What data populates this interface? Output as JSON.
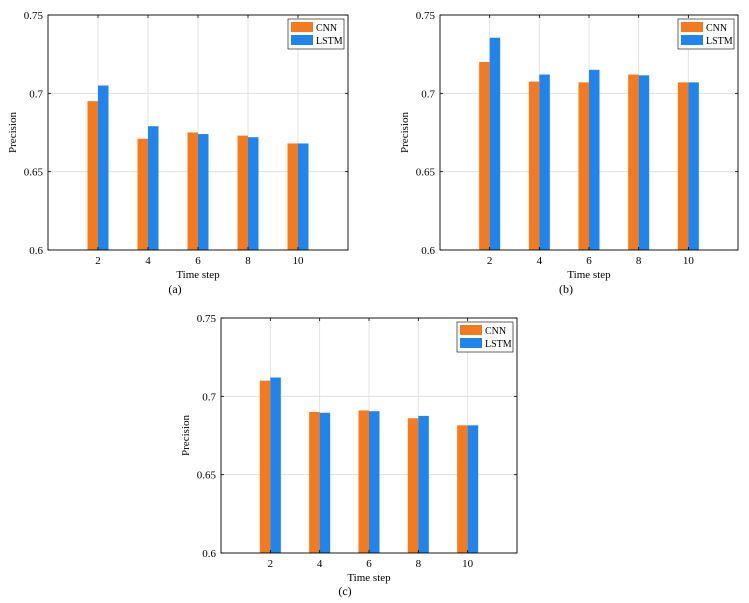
{
  "figure": {
    "colors": {
      "cnn": "#F47A20",
      "lstm": "#1F84EC",
      "grid": "#dcdcdc",
      "axis": "#000000"
    }
  },
  "chart_data": [
    {
      "type": "bar",
      "panel_label": "(a)",
      "xlabel": "Time step",
      "ylabel": "Precision",
      "categories": [
        "2",
        "4",
        "6",
        "8",
        "10"
      ],
      "x": [
        2,
        4,
        6,
        8,
        10
      ],
      "xlim": [
        0,
        12
      ],
      "ylim": [
        0.6,
        0.75
      ],
      "yticks": [
        "0.6",
        "0.65",
        "0.7",
        "0.75"
      ],
      "ytick_values": [
        0.6,
        0.65,
        0.7,
        0.75
      ],
      "grid": true,
      "legend": "top-right",
      "series": [
        {
          "name": "CNN",
          "values": [
            0.695,
            0.671,
            0.675,
            0.673,
            0.668
          ]
        },
        {
          "name": "LSTM",
          "values": [
            0.705,
            0.679,
            0.674,
            0.672,
            0.668
          ]
        }
      ]
    },
    {
      "type": "bar",
      "panel_label": "(b)",
      "xlabel": "Time step",
      "ylabel": "Precision",
      "categories": [
        "2",
        "4",
        "6",
        "8",
        "10"
      ],
      "x": [
        2,
        4,
        6,
        8,
        10
      ],
      "xlim": [
        0,
        12
      ],
      "ylim": [
        0.6,
        0.75
      ],
      "yticks": [
        "0.6",
        "0.65",
        "0.7",
        "0.75"
      ],
      "ytick_values": [
        0.6,
        0.65,
        0.7,
        0.75
      ],
      "grid": true,
      "legend": "top-right",
      "series": [
        {
          "name": "CNN",
          "values": [
            0.72,
            0.7075,
            0.707,
            0.712,
            0.707
          ]
        },
        {
          "name": "LSTM",
          "values": [
            0.7355,
            0.712,
            0.715,
            0.7115,
            0.707
          ]
        }
      ]
    },
    {
      "type": "bar",
      "panel_label": "(c)",
      "xlabel": "Time step",
      "ylabel": "Precision",
      "categories": [
        "2",
        "4",
        "6",
        "8",
        "10"
      ],
      "x": [
        2,
        4,
        6,
        8,
        10
      ],
      "xlim": [
        0,
        12
      ],
      "ylim": [
        0.6,
        0.75
      ],
      "yticks": [
        "0.6",
        "0.65",
        "0.7",
        "0.75"
      ],
      "ytick_values": [
        0.6,
        0.65,
        0.7,
        0.75
      ],
      "grid": true,
      "legend": "top-right",
      "series": [
        {
          "name": "CNN",
          "values": [
            0.71,
            0.69,
            0.691,
            0.686,
            0.6815
          ]
        },
        {
          "name": "LSTM",
          "values": [
            0.712,
            0.6895,
            0.6905,
            0.6875,
            0.6815
          ]
        }
      ]
    }
  ]
}
